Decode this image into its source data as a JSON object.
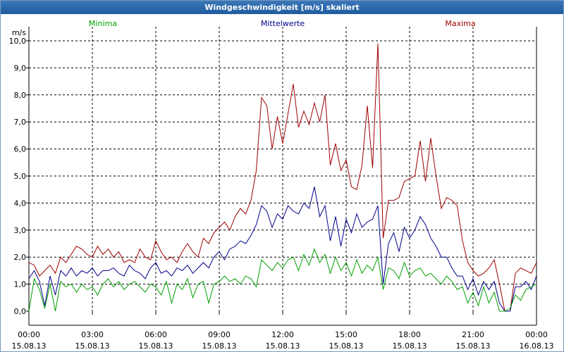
{
  "window": {
    "title": "Windgeschwindigkeit [m/s] skaliert"
  },
  "chart_data": {
    "type": "line",
    "title": "Windgeschwindigkeit [m/s] skaliert",
    "ylabel": "m/s",
    "xlabel": "",
    "ylim": [
      0,
      10
    ],
    "y_ticks": [
      "0,0",
      "1,0",
      "2,0",
      "3,0",
      "4,0",
      "5,0",
      "6,0",
      "7,0",
      "8,0",
      "9,0",
      "10,0"
    ],
    "x_ticks": [
      {
        "time": "00:00",
        "date": "15.08.13"
      },
      {
        "time": "03:00",
        "date": "15.08.13"
      },
      {
        "time": "06:00",
        "date": "15.08.13"
      },
      {
        "time": "09:00",
        "date": "15.08.13"
      },
      {
        "time": "12:00",
        "date": "15.08.13"
      },
      {
        "time": "15:00",
        "date": "15.08.13"
      },
      {
        "time": "18:00",
        "date": "15.08.13"
      },
      {
        "time": "21:00",
        "date": "15.08.13"
      },
      {
        "time": "00:00",
        "date": "16.08.13"
      }
    ],
    "x_hours_range": [
      0,
      24
    ],
    "grid": true,
    "legend": [
      "Minima",
      "Mittelwerte",
      "Maxima"
    ],
    "series": [
      {
        "name": "Maxima",
        "color": "#a00000",
        "hours": [
          0.0,
          0.25,
          0.5,
          0.75,
          1.0,
          1.25,
          1.5,
          1.75,
          2.0,
          2.25,
          2.5,
          2.75,
          3.0,
          3.25,
          3.5,
          3.75,
          4.0,
          4.25,
          4.5,
          4.75,
          5.0,
          5.25,
          5.5,
          5.75,
          6.0,
          6.25,
          6.5,
          6.75,
          7.0,
          7.25,
          7.5,
          7.75,
          8.0,
          8.25,
          8.5,
          8.75,
          9.0,
          9.25,
          9.5,
          9.75,
          10.0,
          10.25,
          10.5,
          10.75,
          11.0,
          11.25,
          11.5,
          11.75,
          12.0,
          12.25,
          12.5,
          12.75,
          13.0,
          13.25,
          13.5,
          13.75,
          14.0,
          14.25,
          14.5,
          14.75,
          15.0,
          15.25,
          15.5,
          15.75,
          16.0,
          16.25,
          16.5,
          16.75,
          17.0,
          17.25,
          17.5,
          17.75,
          18.0,
          18.25,
          18.5,
          18.75,
          19.0,
          19.25,
          19.5,
          19.75,
          20.0,
          20.25,
          20.5,
          20.75,
          21.0,
          21.25,
          21.5,
          21.75,
          22.0,
          22.25,
          22.5,
          22.75,
          23.0,
          23.25,
          23.5,
          23.75,
          24.0
        ],
        "values": [
          1.8,
          1.7,
          1.3,
          1.5,
          1.7,
          1.4,
          2.0,
          1.8,
          2.1,
          2.4,
          2.3,
          2.1,
          2.0,
          2.4,
          2.1,
          2.3,
          2.0,
          2.2,
          1.8,
          1.9,
          1.8,
          2.3,
          2.0,
          1.9,
          2.6,
          2.2,
          1.9,
          2.0,
          1.8,
          2.2,
          2.5,
          2.2,
          2.0,
          2.7,
          2.5,
          2.9,
          3.1,
          3.3,
          3.0,
          3.5,
          3.8,
          3.6,
          4.1,
          5.2,
          7.9,
          7.6,
          6.0,
          7.2,
          6.2,
          7.3,
          8.4,
          6.8,
          7.4,
          6.9,
          7.7,
          7.0,
          8.0,
          5.4,
          6.2,
          5.2,
          5.6,
          4.6,
          4.5,
          5.4,
          7.6,
          5.3,
          9.9,
          2.7,
          4.1,
          4.1,
          4.2,
          4.8,
          4.9,
          5.0,
          6.3,
          4.8,
          6.4,
          5.0,
          3.8,
          4.2,
          4.1,
          3.9,
          2.6,
          1.8,
          1.5,
          1.3,
          1.4,
          1.6,
          1.9,
          1.0,
          0.0,
          0.0,
          1.4,
          1.6,
          1.5,
          1.4,
          1.8
        ]
      },
      {
        "name": "Mittelwerte",
        "color": "#00008b",
        "hours": [
          0.0,
          0.25,
          0.5,
          0.75,
          1.0,
          1.25,
          1.5,
          1.75,
          2.0,
          2.25,
          2.5,
          2.75,
          3.0,
          3.25,
          3.5,
          3.75,
          4.0,
          4.25,
          4.5,
          4.75,
          5.0,
          5.25,
          5.5,
          5.75,
          6.0,
          6.25,
          6.5,
          6.75,
          7.0,
          7.25,
          7.5,
          7.75,
          8.0,
          8.25,
          8.5,
          8.75,
          9.0,
          9.25,
          9.5,
          9.75,
          10.0,
          10.25,
          10.5,
          10.75,
          11.0,
          11.25,
          11.5,
          11.75,
          12.0,
          12.25,
          12.5,
          12.75,
          13.0,
          13.25,
          13.5,
          13.75,
          14.0,
          14.25,
          14.5,
          14.75,
          15.0,
          15.25,
          15.5,
          15.75,
          16.0,
          16.25,
          16.5,
          16.75,
          17.0,
          17.25,
          17.5,
          17.75,
          18.0,
          18.25,
          18.5,
          18.75,
          19.0,
          19.25,
          19.5,
          19.75,
          20.0,
          20.25,
          20.5,
          20.75,
          21.0,
          21.25,
          21.5,
          21.75,
          22.0,
          22.25,
          22.5,
          22.75,
          23.0,
          23.25,
          23.5,
          23.75,
          24.0
        ],
        "values": [
          1.2,
          1.5,
          1.1,
          0.2,
          1.3,
          0.6,
          1.5,
          1.3,
          1.6,
          1.3,
          1.5,
          1.4,
          1.6,
          1.3,
          1.5,
          1.5,
          1.6,
          1.4,
          1.3,
          1.7,
          1.5,
          1.4,
          1.2,
          1.6,
          1.8,
          1.4,
          1.5,
          1.3,
          1.6,
          1.5,
          1.7,
          1.4,
          1.6,
          1.8,
          1.6,
          2.0,
          2.2,
          1.9,
          2.3,
          2.4,
          2.6,
          2.5,
          2.8,
          3.2,
          3.9,
          3.7,
          3.1,
          3.6,
          3.4,
          3.9,
          3.7,
          3.6,
          4.0,
          3.8,
          4.6,
          3.5,
          3.9,
          2.6,
          3.5,
          2.4,
          3.4,
          2.9,
          3.6,
          3.1,
          3.3,
          3.4,
          3.9,
          1.0,
          2.5,
          2.9,
          2.2,
          3.1,
          2.7,
          3.0,
          3.5,
          3.2,
          2.7,
          2.4,
          2.0,
          2.0,
          1.6,
          1.3,
          1.3,
          0.8,
          1.2,
          0.6,
          1.1,
          0.8,
          1.1,
          0.3,
          0.0,
          0.0,
          0.9,
          0.9,
          1.1,
          0.8,
          1.3
        ]
      },
      {
        "name": "Minima",
        "color": "#00a000",
        "hours": [
          0.0,
          0.25,
          0.5,
          0.75,
          1.0,
          1.25,
          1.5,
          1.75,
          2.0,
          2.25,
          2.5,
          2.75,
          3.0,
          3.25,
          3.5,
          3.75,
          4.0,
          4.25,
          4.5,
          4.75,
          5.0,
          5.25,
          5.5,
          5.75,
          6.0,
          6.25,
          6.5,
          6.75,
          7.0,
          7.25,
          7.5,
          7.75,
          8.0,
          8.25,
          8.5,
          8.75,
          9.0,
          9.25,
          9.5,
          9.75,
          10.0,
          10.25,
          10.5,
          10.75,
          11.0,
          11.25,
          11.5,
          11.75,
          12.0,
          12.25,
          12.5,
          12.75,
          13.0,
          13.25,
          13.5,
          13.75,
          14.0,
          14.25,
          14.5,
          14.75,
          15.0,
          15.25,
          15.5,
          15.75,
          16.0,
          16.25,
          16.5,
          16.75,
          17.0,
          17.25,
          17.5,
          17.75,
          18.0,
          18.25,
          18.5,
          18.75,
          19.0,
          19.25,
          19.5,
          19.75,
          20.0,
          20.25,
          20.5,
          20.75,
          21.0,
          21.25,
          21.5,
          21.75,
          22.0,
          22.25,
          22.5,
          22.75,
          23.0,
          23.25,
          23.5,
          23.75,
          24.0
        ],
        "values": [
          0.0,
          1.2,
          0.8,
          0.1,
          1.0,
          0.0,
          1.1,
          0.9,
          1.0,
          0.7,
          1.0,
          0.8,
          0.9,
          0.6,
          1.0,
          1.2,
          0.9,
          1.1,
          0.8,
          1.0,
          1.1,
          0.9,
          0.7,
          1.0,
          0.9,
          0.6,
          1.1,
          0.3,
          1.0,
          0.8,
          1.2,
          0.5,
          1.0,
          1.1,
          0.3,
          1.0,
          1.1,
          1.3,
          1.1,
          1.2,
          1.0,
          1.3,
          1.2,
          0.9,
          1.9,
          1.7,
          1.5,
          1.8,
          1.6,
          1.9,
          2.0,
          1.5,
          2.1,
          1.7,
          2.3,
          1.8,
          2.1,
          1.4,
          2.0,
          1.5,
          1.8,
          1.3,
          1.9,
          1.4,
          1.7,
          1.5,
          2.0,
          0.8,
          1.6,
          1.5,
          1.2,
          1.8,
          1.3,
          1.5,
          1.6,
          1.3,
          1.4,
          1.2,
          1.0,
          1.3,
          1.1,
          0.8,
          0.9,
          0.3,
          0.7,
          0.2,
          0.9,
          0.3,
          0.7,
          0.0,
          0.0,
          0.1,
          0.6,
          0.4,
          0.8,
          0.9,
          1.0
        ]
      }
    ]
  }
}
